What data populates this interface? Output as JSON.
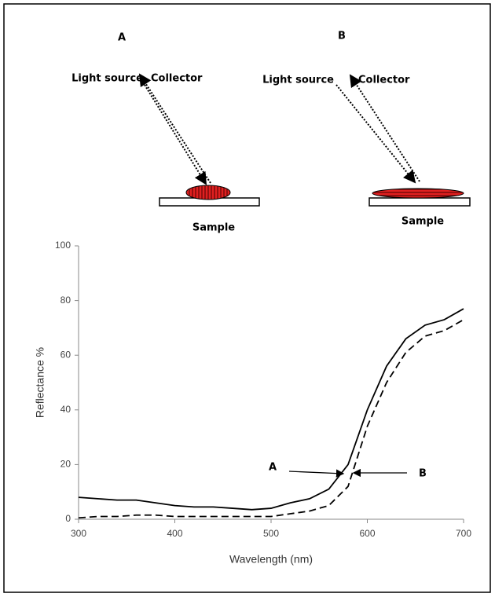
{
  "diagram": {
    "panels": [
      {
        "label": "A",
        "light_source": "Light source",
        "collector": "Collector",
        "sample": "Sample"
      },
      {
        "label": "B",
        "light_source": "Light source",
        "collector": "Collector",
        "sample": "Sample"
      }
    ]
  },
  "chart_data": {
    "type": "line",
    "y_label": "Reflectance %",
    "x_label": "Wavelength (nm)",
    "x": [
      300,
      320,
      340,
      360,
      380,
      400,
      420,
      440,
      460,
      480,
      500,
      520,
      540,
      560,
      580,
      600,
      620,
      640,
      660,
      680,
      700
    ],
    "series": [
      {
        "name": "A",
        "color": "#000000",
        "dash": "solid",
        "values": [
          8,
          7.5,
          7,
          7,
          6,
          5,
          4.5,
          4.5,
          4,
          3.5,
          4,
          6,
          7.5,
          11,
          20,
          40,
          56,
          66,
          71,
          73,
          77
        ]
      },
      {
        "name": "B",
        "color": "#000000",
        "dash": "dashed",
        "values": [
          0.5,
          1,
          1,
          1.5,
          1.5,
          1,
          1,
          1,
          1,
          1,
          1,
          2,
          3,
          5,
          12,
          34,
          50,
          61,
          67,
          69,
          73
        ]
      }
    ],
    "xlim": [
      300,
      700
    ],
    "xticks": [
      300,
      400,
      500,
      600,
      700
    ],
    "ylim": [
      0,
      100
    ],
    "yticks": [
      0,
      20,
      40,
      60,
      80,
      100
    ],
    "grid": false
  }
}
